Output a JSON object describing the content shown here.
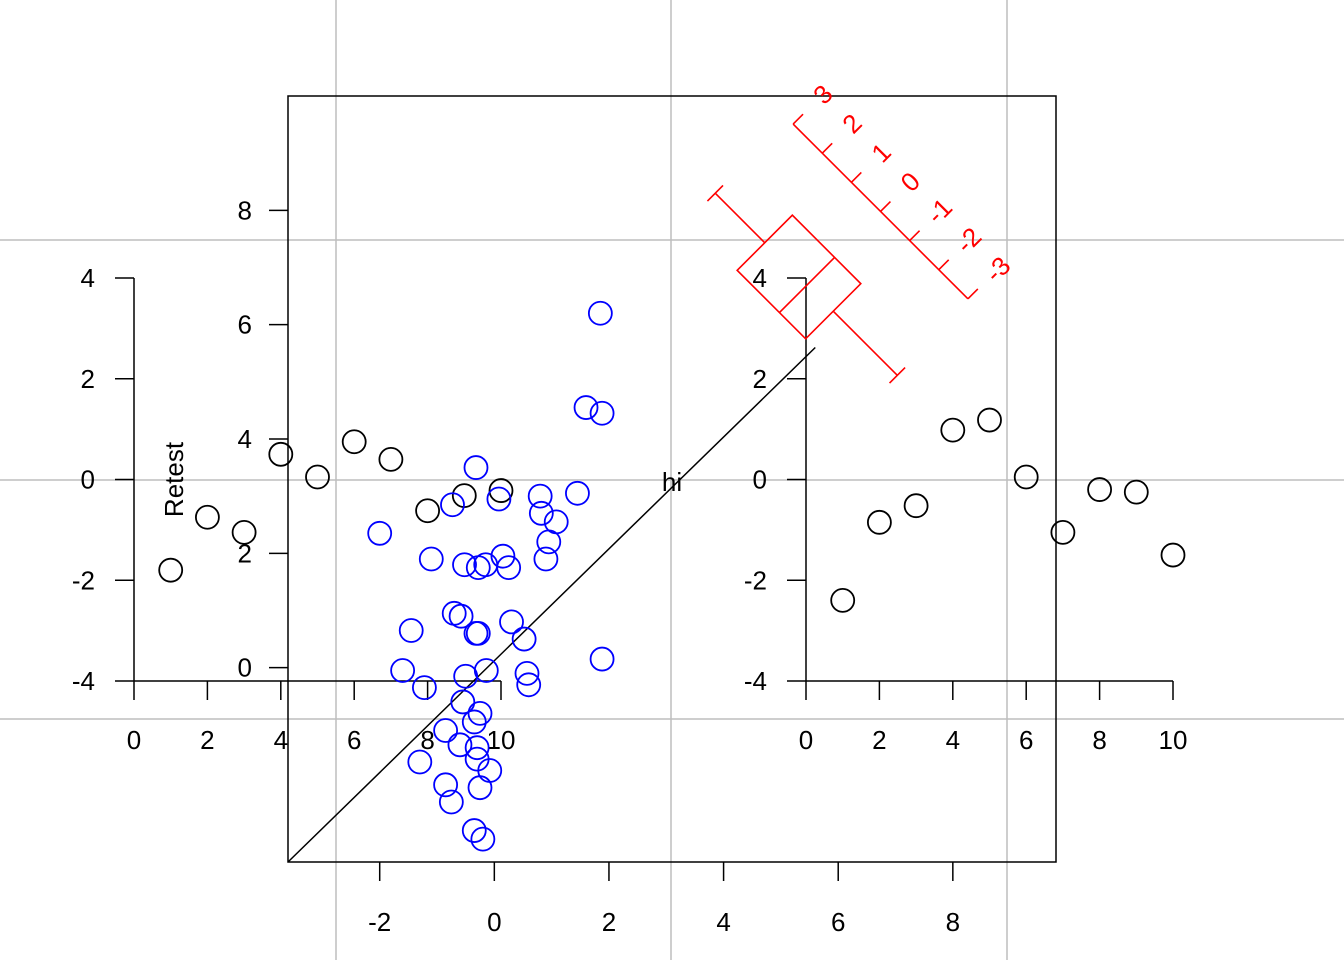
{
  "chart_data": [
    {
      "type": "scatter",
      "panel": "main-centre",
      "title": "",
      "xlabel": "",
      "ylabel": "",
      "xlim": [
        -3.6,
        9.8
      ],
      "ylim": [
        -3.4,
        10.0
      ],
      "xticks": [
        -2,
        0,
        2,
        4,
        6,
        8
      ],
      "yticks": [
        0,
        2,
        4,
        6,
        8
      ],
      "reference_line": {
        "from": [
          -3.6,
          -3.4
        ],
        "to": [
          5.6,
          5.6
        ]
      },
      "center_label": "hi",
      "point_color": "#0000ff",
      "series": [
        {
          "x": [
            1.85,
            1.6,
            1.88,
            -0.32,
            1.45,
            0.8,
            0.08,
            -0.73,
            0.82,
            1.08,
            -2.0,
            0.95,
            -1.1,
            0.15,
            -0.52,
            -0.28,
            -0.15,
            0.25,
            0.9,
            -0.7,
            -0.58,
            0.3,
            -0.32,
            -0.28,
            -1.45,
            0.52,
            1.88,
            -1.6,
            0.57,
            0.6,
            -1.22,
            -0.5,
            -0.14,
            -0.55,
            -0.25,
            -0.85,
            -0.35,
            -0.6,
            -0.3,
            -1.3,
            -0.3,
            -0.08,
            -0.85,
            -0.25,
            -0.75,
            -0.35,
            -0.2
          ],
          "y": [
            6.2,
            4.55,
            4.45,
            3.5,
            3.05,
            3.0,
            2.95,
            2.85,
            2.7,
            2.55,
            2.35,
            2.2,
            1.9,
            1.95,
            1.8,
            1.75,
            1.8,
            1.75,
            1.9,
            0.95,
            0.9,
            0.8,
            0.6,
            0.6,
            0.65,
            0.5,
            0.15,
            -0.05,
            -0.1,
            -0.3,
            -0.35,
            -0.15,
            -0.05,
            -0.6,
            -0.8,
            -1.1,
            -0.95,
            -1.35,
            -1.4,
            -1.65,
            -1.6,
            -1.8,
            -2.05,
            -2.1,
            -2.35,
            -2.85,
            -3.0
          ]
        }
      ]
    },
    {
      "type": "scatter",
      "panel": "left-inset",
      "title": "",
      "xlabel": "",
      "ylabel": "Retest",
      "xlim": [
        0,
        10
      ],
      "ylim": [
        -4,
        4
      ],
      "xticks": [
        0,
        2,
        4,
        6,
        8,
        10
      ],
      "yticks": [
        -4,
        -2,
        0,
        2,
        4
      ],
      "point_color": "#000000",
      "series": [
        {
          "x": [
            1,
            2,
            3,
            4,
            5,
            6,
            7,
            8,
            9,
            10
          ],
          "y": [
            -1.8,
            -0.75,
            -1.05,
            0.5,
            0.05,
            0.75,
            0.4,
            -0.62,
            -0.32,
            -0.22
          ]
        }
      ]
    },
    {
      "type": "scatter",
      "panel": "right-inset",
      "title": "",
      "xlabel": "",
      "ylabel": "",
      "xlim": [
        0,
        10
      ],
      "ylim": [
        -4,
        4
      ],
      "xticks": [
        0,
        2,
        4,
        6,
        8,
        10
      ],
      "yticks": [
        -4,
        -2,
        0,
        2,
        4
      ],
      "point_color": "#000000",
      "series": [
        {
          "x": [
            1,
            2,
            3,
            4,
            5,
            6,
            7,
            8,
            9,
            10
          ],
          "y": [
            -2.4,
            -0.85,
            -0.52,
            0.98,
            1.18,
            0.05,
            -1.05,
            -0.2,
            -0.25,
            -1.5
          ]
        }
      ]
    },
    {
      "type": "boxplot",
      "panel": "rotated-box-red",
      "orientation_degrees": -45,
      "color": "#ff0000",
      "scale_ticks": [
        3,
        2,
        1,
        0,
        -1,
        -2,
        -3
      ],
      "stats": {
        "whisker_low": -3.1,
        "q1": -0.9,
        "median": 0.0,
        "q3": 1.45,
        "whisker_high": 3.15
      }
    }
  ]
}
